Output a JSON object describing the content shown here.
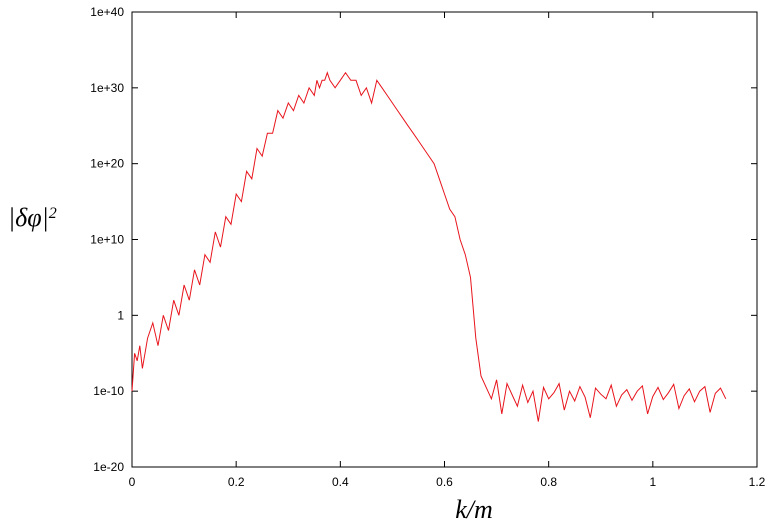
{
  "chart_data": {
    "type": "line",
    "title": "",
    "xlabel": "k/m",
    "ylabel": "|δφ|",
    "ylabel_superscript": "2",
    "xlim": [
      0,
      1.2
    ],
    "ylim": [
      1e-20,
      1e+40
    ],
    "yscale": "log",
    "grid": false,
    "xticks": [
      0,
      0.2,
      0.4,
      0.6,
      0.8,
      1,
      1.2
    ],
    "xtick_labels": [
      "0",
      "0.2",
      "0.4",
      "0.6",
      "0.8",
      "1",
      "1.2"
    ],
    "yticks": [
      1e-20,
      1e-10,
      1,
      10000000000.0,
      1e+20,
      1e+30,
      1e+40
    ],
    "ytick_labels": [
      "1e-20",
      "1e-10",
      "1",
      "1e+10",
      "1e+20",
      "1e+30",
      "1e+40"
    ],
    "series": [
      {
        "color": "#e8141c",
        "x": [
          0,
          0.005,
          0.01,
          0.015,
          0.02,
          0.03,
          0.04,
          0.05,
          0.06,
          0.07,
          0.08,
          0.09,
          0.1,
          0.11,
          0.12,
          0.13,
          0.14,
          0.15,
          0.16,
          0.17,
          0.18,
          0.19,
          0.2,
          0.21,
          0.22,
          0.23,
          0.24,
          0.25,
          0.26,
          0.27,
          0.28,
          0.29,
          0.3,
          0.31,
          0.32,
          0.33,
          0.34,
          0.35,
          0.355,
          0.36,
          0.365,
          0.37,
          0.375,
          0.38,
          0.39,
          0.4,
          0.41,
          0.42,
          0.43,
          0.44,
          0.45,
          0.46,
          0.47,
          0.48,
          0.49,
          0.5,
          0.51,
          0.52,
          0.53,
          0.54,
          0.55,
          0.56,
          0.57,
          0.58,
          0.59,
          0.6,
          0.61,
          0.62,
          0.63,
          0.64,
          0.65,
          0.66,
          0.67,
          0.68,
          0.69,
          0.7,
          0.71,
          0.72,
          0.73,
          0.74,
          0.75,
          0.76,
          0.77,
          0.78,
          0.79,
          0.8,
          0.81,
          0.82,
          0.83,
          0.84,
          0.85,
          0.86,
          0.87,
          0.88,
          0.89,
          0.9,
          0.91,
          0.92,
          0.93,
          0.94,
          0.95,
          0.96,
          0.97,
          0.98,
          0.99,
          1.0,
          1.01,
          1.02,
          1.03,
          1.04,
          1.05,
          1.06,
          1.07,
          1.08,
          1.09,
          1.1,
          1.11,
          1.12,
          1.13,
          1.14
        ],
        "log10_y": [
          -10,
          -5,
          -6,
          -4,
          -7,
          -3,
          -1,
          -4,
          0,
          -2,
          2,
          0,
          4,
          2,
          6,
          4,
          8,
          7,
          11,
          9,
          13,
          12,
          16,
          15,
          19,
          18,
          22,
          21,
          24,
          24,
          27,
          26,
          28,
          27,
          29,
          28,
          30,
          29,
          31,
          30,
          31,
          31,
          32,
          31,
          30,
          31,
          32,
          31,
          31,
          29,
          30,
          28,
          31,
          30,
          29,
          28,
          27,
          26,
          25,
          24,
          23,
          22,
          21,
          20,
          18,
          16,
          14,
          13,
          10,
          8,
          5,
          -3,
          -8,
          -9.5,
          -11,
          -8.5,
          -13,
          -9,
          -10.5,
          -12,
          -9.2,
          -11.5,
          -10,
          -14,
          -9.5,
          -11,
          -10.2,
          -9,
          -12.5,
          -10,
          -11.3,
          -9.4,
          -10.8,
          -13.5,
          -9.6,
          -10.4,
          -11,
          -9.2,
          -12,
          -10.5,
          -9.8,
          -11.2,
          -10,
          -9.3,
          -13,
          -10.7,
          -9.5,
          -11.1,
          -10.2,
          -9.1,
          -12.3,
          -10.6,
          -9.7,
          -11.4,
          -10,
          -9.4,
          -12.8,
          -10.3,
          -9.6,
          -11,
          -10.1,
          -9.5
        ]
      }
    ]
  }
}
